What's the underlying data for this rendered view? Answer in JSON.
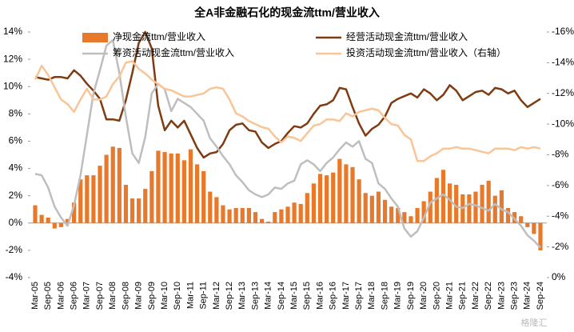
{
  "chart_data": {
    "type": "combo",
    "title": "全A非金融石化的现金流ttm/营业收入",
    "watermark": "格隆汇",
    "categories": [
      "Mar-05",
      null,
      "Sep-05",
      null,
      "Mar-06",
      null,
      "Sep-06",
      null,
      "Mar-07",
      null,
      "Sep-07",
      null,
      "Mar-08",
      null,
      "Sep-08",
      null,
      "Mar-09",
      null,
      "Sep-09",
      null,
      "Mar-10",
      null,
      "Sep-10",
      null,
      "Mar-11",
      null,
      "Sep-11",
      null,
      "Mar-12",
      null,
      "Sep-12",
      null,
      "Mar-13",
      null,
      "Sep-13",
      null,
      "Mar-14",
      null,
      "Sep-14",
      null,
      "Mar-15",
      null,
      "Sep-15",
      null,
      "Mar-16",
      null,
      "Sep-16",
      null,
      "Mar-17",
      null,
      "Sep-17",
      null,
      "Mar-18",
      null,
      "Sep-18",
      null,
      "Mar-19",
      null,
      "Sep-19",
      null,
      "Mar-20",
      null,
      "Sep-20",
      null,
      "Mar-21",
      null,
      "Sep-21",
      null,
      "Mar-22",
      null,
      "Sep-22",
      null,
      "Mar-23",
      null,
      "Sep-23",
      null,
      "Mar-24",
      null,
      "Sep-24"
    ],
    "series": [
      {
        "name": "净现金流ttm/营业收入",
        "type": "bar",
        "color": "#E8792A",
        "values": [
          1.3,
          0.6,
          0.4,
          -0.4,
          -0.3,
          0.3,
          1.5,
          3.2,
          3.5,
          3.5,
          4.2,
          5.0,
          5.6,
          5.5,
          2.8,
          1.8,
          1.8,
          2.5,
          3.8,
          5.3,
          5.2,
          5.1,
          5.1,
          4.6,
          5.4,
          4.3,
          3.8,
          2.3,
          1.9,
          1.3,
          1.0,
          1.1,
          1.1,
          1.1,
          0.8,
          0.3,
          0.1,
          0.8,
          1.0,
          1.2,
          1.5,
          1.4,
          2.2,
          2.9,
          3.6,
          3.5,
          3.7,
          4.7,
          4.3,
          4.1,
          3.2,
          2.2,
          2.0,
          2.3,
          1.7,
          1.2,
          1.1,
          0.8,
          0.5,
          1.1,
          1.6,
          2.3,
          3.3,
          3.9,
          2.9,
          2.8,
          2.1,
          2.1,
          2.3,
          2.8,
          3.1,
          2.0,
          2.4,
          1.1,
          0.8,
          0.5,
          -0.3,
          -0.8,
          -2.0
        ]
      },
      {
        "name": "经营活动现金流ttm/营业收入",
        "type": "line",
        "color": "#7F3B12",
        "values": [
          10.7,
          10.6,
          10.5,
          10.7,
          10.7,
          10.6,
          11.2,
          10.8,
          10.2,
          9.7,
          9.1,
          7.6,
          7.6,
          7.5,
          9.0,
          11.0,
          13.2,
          14.0,
          12.8,
          8.6,
          6.8,
          7.5,
          7.0,
          7.5,
          6.5,
          5.5,
          4.8,
          5.1,
          5.2,
          5.8,
          6.8,
          7.2,
          7.3,
          6.8,
          6.7,
          5.9,
          5.5,
          5.8,
          6.0,
          6.6,
          7.1,
          7.0,
          7.3,
          8.0,
          8.6,
          8.7,
          9.0,
          9.9,
          9.8,
          8.5,
          7.3,
          6.4,
          6.9,
          7.2,
          7.8,
          8.8,
          9.1,
          9.3,
          9.5,
          9.2,
          9.8,
          9.5,
          9.0,
          9.4,
          10.1,
          9.7,
          9.0,
          9.3,
          9.6,
          9.7,
          9.4,
          9.9,
          9.8,
          9.5,
          9.7,
          9.0,
          8.5,
          8.8,
          9.1
        ]
      },
      {
        "name": "筹资活动现金流ttm/营业收入",
        "type": "line",
        "color": "#BEBEBE",
        "values": [
          3.6,
          3.5,
          2.6,
          1.2,
          0.4,
          -0.2,
          1.3,
          3.5,
          6.5,
          9.5,
          11.2,
          13.0,
          13.4,
          11.0,
          7.8,
          5.1,
          4.4,
          6.3,
          9.5,
          10.2,
          9.8,
          8.2,
          9.1,
          8.8,
          8.5,
          8.0,
          7.5,
          6.2,
          5.6,
          4.9,
          4.3,
          3.5,
          3.0,
          2.4,
          2.1,
          1.9,
          2.1,
          2.6,
          2.5,
          2.9,
          3.1,
          4.3,
          4.6,
          4.3,
          3.8,
          4.4,
          4.8,
          5.4,
          5.9,
          5.6,
          6.0,
          4.7,
          4.4,
          2.9,
          2.5,
          1.8,
          1.2,
          -0.4,
          -1.0,
          -0.6,
          0.4,
          1.5,
          1.8,
          2.1,
          1.7,
          1.2,
          1.1,
          1.4,
          1.3,
          1.1,
          0.9,
          1.4,
          1.0,
          0.8,
          0.3,
          -0.2,
          -0.9,
          -1.3,
          -1.8
        ]
      },
      {
        "name": "投资活动现金流ttm/营业收入（右轴）",
        "type": "line",
        "axis": "y2",
        "color": "#F9C597",
        "values": [
          -12.9,
          -13.8,
          -13.2,
          -12.4,
          -11.6,
          -11.3,
          -10.8,
          -11.6,
          -12.3,
          -11.6,
          -11.6,
          -11.8,
          -12.6,
          -13.1,
          -14.0,
          -14.1,
          -13.6,
          -13.3,
          -12.9,
          -12.6,
          -12.3,
          -12.2,
          -12.0,
          -11.8,
          -11.8,
          -11.9,
          -12.0,
          -12.3,
          -12.4,
          -12.3,
          -11.6,
          -10.7,
          -10.5,
          -10.2,
          -10.0,
          -9.8,
          -9.7,
          -9.2,
          -8.8,
          -9.2,
          -9.1,
          -8.9,
          -9.4,
          -9.9,
          -10.0,
          -10.3,
          -10.3,
          -10.2,
          -10.7,
          -10.5,
          -10.8,
          -10.9,
          -11.0,
          -10.9,
          -10.4,
          -10.0,
          -9.9,
          -9.3,
          -9.0,
          -7.6,
          -7.6,
          -7.9,
          -8.1,
          -8.4,
          -8.4,
          -8.5,
          -8.4,
          -8.4,
          -8.3,
          -8.2,
          -8.1,
          -8.4,
          -8.4,
          -8.4,
          -8.3,
          -8.5,
          -8.4,
          -8.5,
          -8.4
        ]
      }
    ],
    "ylim": [
      -4,
      14
    ],
    "yticks": [
      {
        "value": -4,
        "label": "-4%"
      },
      {
        "value": -2,
        "label": "-2%"
      },
      {
        "value": 0,
        "label": "0%"
      },
      {
        "value": 2,
        "label": "2%"
      },
      {
        "value": 4,
        "label": "4%"
      },
      {
        "value": 6,
        "label": "6%"
      },
      {
        "value": 8,
        "label": "8%"
      },
      {
        "value": 10,
        "label": "10%"
      },
      {
        "value": 12,
        "label": "12%"
      },
      {
        "value": 14,
        "label": "14%"
      }
    ],
    "y2lim": [
      0,
      -16
    ],
    "y2ticks": [
      {
        "value": 0,
        "label": "0%"
      },
      {
        "value": -2,
        "label": "-2%"
      },
      {
        "value": -4,
        "label": "-4%"
      },
      {
        "value": -6,
        "label": "-6%"
      },
      {
        "value": -8,
        "label": "-8%"
      },
      {
        "value": -10,
        "label": "-10%"
      },
      {
        "value": -12,
        "label": "-12%"
      },
      {
        "value": -14,
        "label": "-14%"
      },
      {
        "value": -16,
        "label": "-16%"
      }
    ],
    "grid": false
  }
}
